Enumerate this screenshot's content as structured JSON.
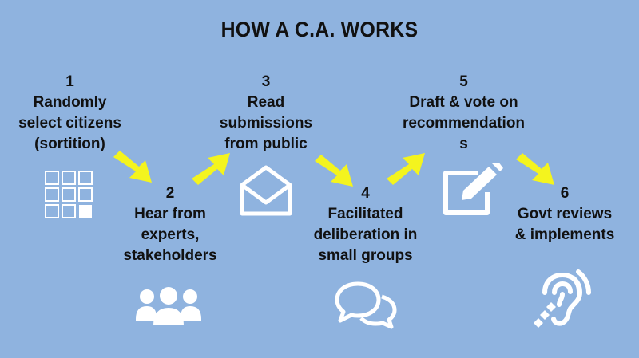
{
  "title": "HOW A C.A. WORKS",
  "steps": [
    {
      "number": "1",
      "lines": [
        "Randomly",
        "select citizens",
        "(sortition)"
      ],
      "icon": "grid-select-icon"
    },
    {
      "number": "2",
      "lines": [
        "Hear from",
        "experts,",
        "stakeholders"
      ],
      "icon": "people-group-icon"
    },
    {
      "number": "3",
      "lines": [
        "Read",
        "submissions",
        "from public"
      ],
      "icon": "open-envelope-icon"
    },
    {
      "number": "4",
      "lines": [
        "Facilitated",
        "deliberation in",
        "small groups"
      ],
      "icon": "chat-bubbles-icon"
    },
    {
      "number": "5",
      "lines": [
        "Draft & vote on",
        "recommendation",
        "s"
      ],
      "icon": "edit-document-icon"
    },
    {
      "number": "6",
      "lines": [
        "Govt reviews",
        "& implements"
      ],
      "icon": "listening-ear-icon"
    }
  ],
  "colors": {
    "background": "#8fb3df",
    "arrow": "#f4f41e",
    "icon": "#ffffff",
    "text": "#111111"
  }
}
